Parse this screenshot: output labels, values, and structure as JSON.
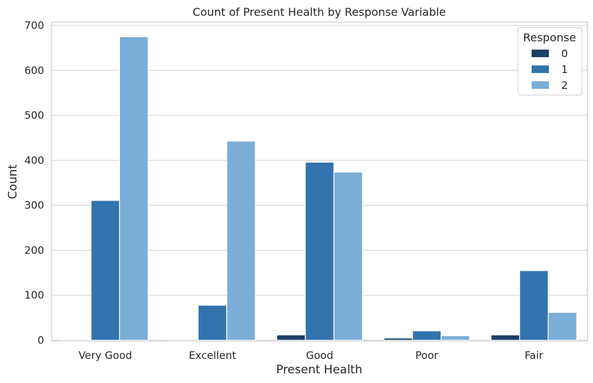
{
  "chart_data": {
    "type": "bar",
    "title": "Count of Present Health by Response Variable",
    "xlabel": "Present Health",
    "ylabel": "Count",
    "categories": [
      "Very Good",
      "Excellent",
      "Good",
      "Poor",
      "Fair"
    ],
    "series": [
      {
        "name": "0",
        "color": "#1b3f66",
        "values": [
          2,
          2,
          12,
          5,
          12
        ]
      },
      {
        "name": "1",
        "color": "#3373ad",
        "values": [
          311,
          78,
          396,
          21,
          155
        ]
      },
      {
        "name": "2",
        "color": "#7aaed8",
        "values": [
          675,
          443,
          374,
          10,
          62
        ]
      }
    ],
    "ylim": [
      0,
      700
    ],
    "yticks": [
      0,
      100,
      200,
      300,
      400,
      500,
      600,
      700
    ],
    "grid": true,
    "legend": {
      "title": "Response",
      "position": "top-right"
    }
  }
}
